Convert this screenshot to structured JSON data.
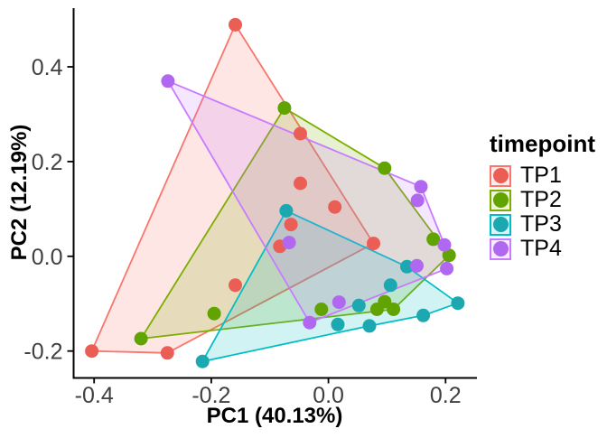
{
  "chart_data": {
    "type": "scatter",
    "title": "",
    "xlabel": "PC1 (40.13%)",
    "ylabel": "PC2 (12.19%)",
    "xlim": [
      -0.435,
      0.252
    ],
    "ylim": [
      -0.255,
      0.524
    ],
    "x_ticks": [
      -0.4,
      -0.2,
      0.0,
      0.2
    ],
    "x_tick_labels": [
      "-0.4",
      "-0.2",
      "0.0",
      "0.2"
    ],
    "y_ticks": [
      -0.2,
      0.0,
      0.2,
      0.4
    ],
    "y_tick_labels": [
      "-0.2",
      "0.0",
      "0.2",
      "0.4"
    ],
    "grid": false,
    "legend_title": "timepoint",
    "legend_position": "right",
    "hull_alpha": 0.18,
    "series": [
      {
        "name": "TP1",
        "point_color": "#EB5E55",
        "line_color": "#F8766D",
        "points": [
          [
            -0.159,
            0.489
          ],
          [
            -0.048,
            0.259
          ],
          [
            -0.048,
            0.154
          ],
          [
            0.011,
            0.104
          ],
          [
            -0.064,
            0.067
          ],
          [
            -0.083,
            0.021
          ],
          [
            0.077,
            0.027
          ],
          [
            -0.159,
            -0.061
          ],
          [
            -0.404,
            -0.2
          ],
          [
            -0.275,
            -0.204
          ]
        ],
        "hull": [
          [
            -0.159,
            0.489
          ],
          [
            0.077,
            0.027
          ],
          [
            -0.275,
            -0.204
          ],
          [
            -0.404,
            -0.2
          ]
        ]
      },
      {
        "name": "TP2",
        "point_color": "#61A300",
        "line_color": "#7CAE00",
        "points": [
          [
            -0.075,
            0.313
          ],
          [
            0.096,
            0.186
          ],
          [
            0.179,
            0.036
          ],
          [
            0.206,
            0.002
          ],
          [
            0.096,
            -0.096
          ],
          [
            0.111,
            -0.112
          ],
          [
            0.083,
            -0.112
          ],
          [
            -0.012,
            -0.112
          ],
          [
            -0.195,
            -0.121
          ],
          [
            -0.32,
            -0.174
          ]
        ],
        "hull": [
          [
            -0.075,
            0.313
          ],
          [
            0.096,
            0.186
          ],
          [
            0.206,
            0.002
          ],
          [
            0.111,
            -0.112
          ],
          [
            -0.32,
            -0.174
          ]
        ]
      },
      {
        "name": "TP3",
        "point_color": "#1BA8B0",
        "line_color": "#00BFC4",
        "points": [
          [
            -0.072,
            0.096
          ],
          [
            0.134,
            -0.022
          ],
          [
            0.106,
            -0.061
          ],
          [
            0.052,
            -0.104
          ],
          [
            0.016,
            -0.144
          ],
          [
            0.07,
            -0.147
          ],
          [
            0.162,
            -0.125
          ],
          [
            0.221,
            -0.099
          ],
          [
            -0.215,
            -0.222
          ]
        ],
        "hull": [
          [
            -0.072,
            0.096
          ],
          [
            0.134,
            -0.022
          ],
          [
            0.221,
            -0.099
          ],
          [
            0.162,
            -0.125
          ],
          [
            0.07,
            -0.147
          ],
          [
            -0.215,
            -0.222
          ]
        ]
      },
      {
        "name": "TP4",
        "point_color": "#B168F1",
        "line_color": "#C77CFF",
        "points": [
          [
            -0.274,
            0.37
          ],
          [
            0.158,
            0.147
          ],
          [
            0.152,
            0.118
          ],
          [
            0.198,
            0.024
          ],
          [
            0.202,
            -0.026
          ],
          [
            0.151,
            -0.02
          ],
          [
            -0.067,
            0.029
          ],
          [
            0.018,
            -0.097
          ],
          [
            -0.032,
            -0.14
          ]
        ],
        "hull": [
          [
            -0.274,
            0.37
          ],
          [
            0.158,
            0.147
          ],
          [
            0.198,
            0.024
          ],
          [
            0.202,
            -0.026
          ],
          [
            -0.032,
            -0.14
          ]
        ]
      }
    ]
  }
}
